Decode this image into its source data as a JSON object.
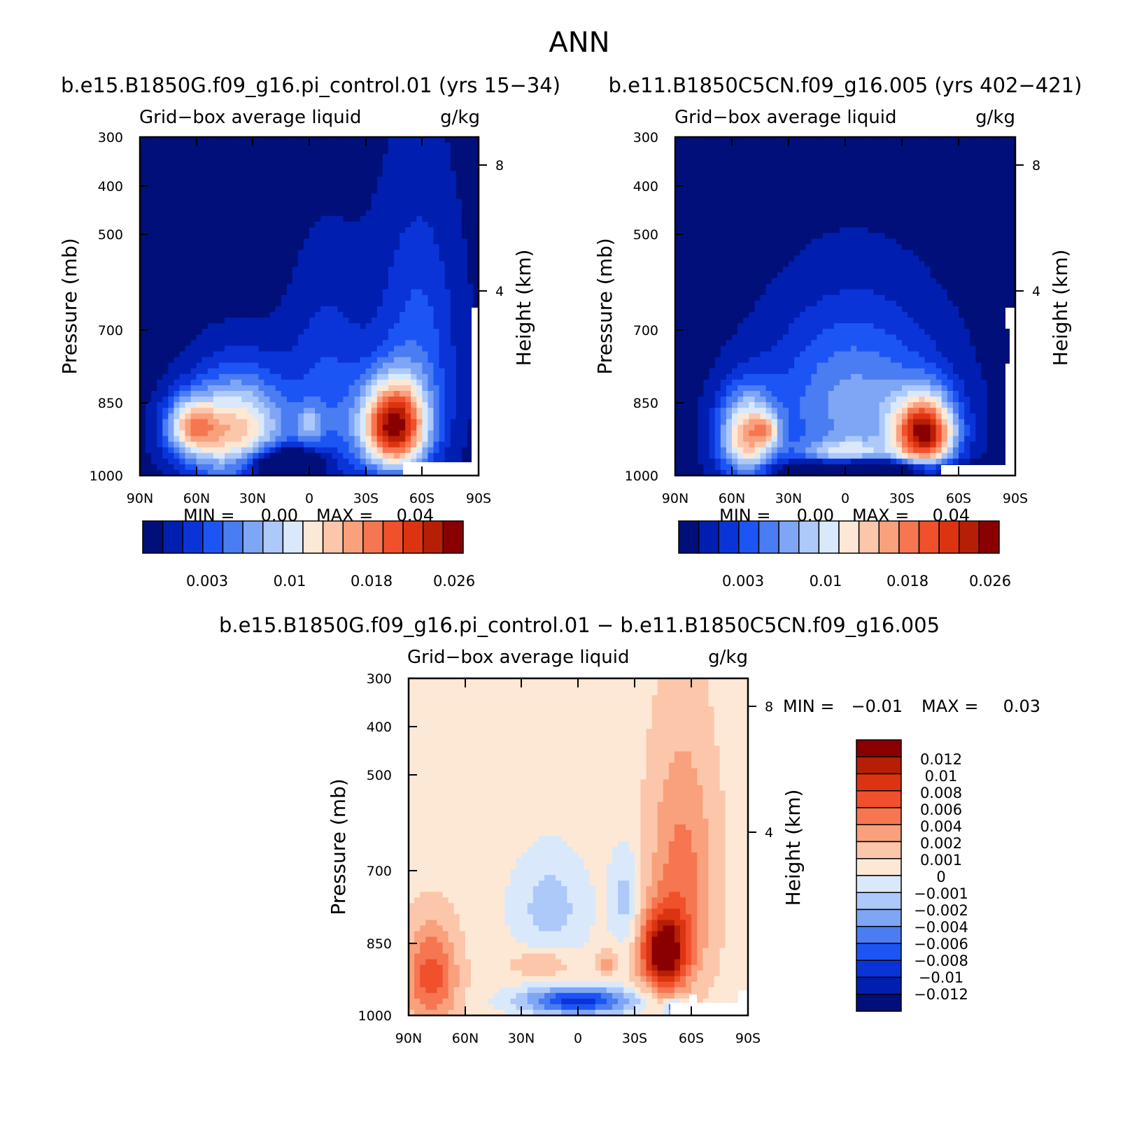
{
  "figure": {
    "title": "ANN"
  },
  "colors": {
    "cool": [
      "#000f7a",
      "#001fb0",
      "#0b34d8",
      "#1d55f5",
      "#4a7cf2",
      "#7ea6f5",
      "#adc9fa",
      "#d9e9fb"
    ],
    "warm": [
      "#fde8d6",
      "#fcc6aa",
      "#f9a07c",
      "#f57650",
      "#f0502b",
      "#dc3410",
      "#b61f06",
      "#8a0000"
    ],
    "white": "#ffffff"
  },
  "chart_data": [
    {
      "type": "heatmap",
      "title": "b.e15.B1850G.f09_g16.pi_control.01 (yrs 15−34)",
      "left_label": "Grid−box average liquid",
      "right_label": "g/kg",
      "xlabel": "",
      "ylabel": "Pressure (mb)",
      "ylabel_right": "Height (km)",
      "x_ticks": [
        "90N",
        "60N",
        "30N",
        "0",
        "30S",
        "60S",
        "90S"
      ],
      "y_ticks": [
        "300",
        "400",
        "500",
        "700",
        "850",
        "1000"
      ],
      "y_right_ticks": [
        "8",
        "4"
      ],
      "ylim": [
        1000,
        300
      ],
      "min_label": "MIN =",
      "min_value": "0.00",
      "max_label": "MAX =",
      "max_value": "0.04",
      "colorbar_ticks": [
        "0.003",
        "0.01",
        "0.018",
        "0.026"
      ],
      "field": {
        "background": 0,
        "blobs": [
          {
            "lat": 38,
            "p": 860,
            "slat": 26,
            "sp": 170,
            "a": 9
          },
          {
            "lat": 63,
            "p": 840,
            "slat": 14,
            "sp": 85,
            "a": 7
          },
          {
            "lat": -45,
            "p": 840,
            "slat": 17,
            "sp": 130,
            "a": 14
          },
          {
            "lat": -10,
            "p": 800,
            "slat": 22,
            "sp": 300,
            "a": 3
          },
          {
            "lat": 0,
            "p": 835,
            "slat": 6,
            "sp": 55,
            "a": 3
          },
          {
            "lat": -58,
            "p": 650,
            "slat": 22,
            "sp": 300,
            "a": 3
          },
          {
            "lat": 15,
            "p": 960,
            "slat": 22,
            "sp": 60,
            "a": -7
          }
        ]
      }
    },
    {
      "type": "heatmap",
      "title": "b.e11.B1850C5CN.f09_g16.005 (yrs 402−421)",
      "left_label": "Grid−box average liquid",
      "right_label": "g/kg",
      "xlabel": "",
      "ylabel": "Pressure (mb)",
      "ylabel_right": "Height (km)",
      "x_ticks": [
        "90N",
        "60N",
        "30N",
        "0",
        "30S",
        "60S",
        "90S"
      ],
      "y_ticks": [
        "300",
        "400",
        "500",
        "700",
        "850",
        "1000"
      ],
      "y_right_ticks": [
        "8",
        "4"
      ],
      "ylim": [
        1000,
        300
      ],
      "min_label": "MIN =",
      "min_value": "0.00",
      "max_label": "MAX =",
      "max_value": "0.04",
      "colorbar_ticks": [
        "0.003",
        "0.01",
        "0.018",
        "0.026"
      ],
      "field": {
        "background": 0,
        "blobs": [
          {
            "lat": 52,
            "p": 870,
            "slat": 15,
            "sp": 130,
            "a": 9
          },
          {
            "lat": 42,
            "p": 850,
            "slat": 6,
            "sp": 40,
            "a": 4
          },
          {
            "lat": -42,
            "p": 860,
            "slat": 16,
            "sp": 110,
            "a": 13
          },
          {
            "lat": -5,
            "p": 780,
            "slat": 45,
            "sp": 240,
            "a": 5
          },
          {
            "lat": 0,
            "p": 920,
            "slat": 22,
            "sp": 40,
            "a": 4
          },
          {
            "lat": -10,
            "p": 975,
            "slat": 40,
            "sp": 30,
            "a": -7
          }
        ]
      }
    },
    {
      "type": "heatmap",
      "title": "b.e15.B1850G.f09_g16.pi_control.01 − b.e11.B1850C5CN.f09_g16.005",
      "left_label": "Grid−box average liquid",
      "right_label": "g/kg",
      "xlabel": "",
      "ylabel": "Pressure (mb)",
      "ylabel_right": "Height (km)",
      "x_ticks": [
        "90N",
        "60N",
        "30N",
        "0",
        "30S",
        "60S",
        "90S"
      ],
      "y_ticks": [
        "300",
        "400",
        "500",
        "700",
        "850",
        "1000"
      ],
      "y_right_ticks": [
        "8",
        "4"
      ],
      "ylim": [
        1000,
        300
      ],
      "min_label": "MIN =",
      "min_value": "−0.01",
      "max_label": "MAX =",
      "max_value": "0.03",
      "colorbar_ticks": [
        "0.012",
        "0.01",
        "0.008",
        "0.006",
        "0.004",
        "0.002",
        "0.001",
        "0",
        "−0.001",
        "−0.002",
        "−0.004",
        "−0.006",
        "−0.008",
        "−0.01",
        "−0.012"
      ],
      "field": {
        "background": 8,
        "blobs": [
          {
            "lat": -45,
            "p": 800,
            "slat": 12,
            "sp": 110,
            "a": 7
          },
          {
            "lat": -55,
            "p": 620,
            "slat": 18,
            "sp": 280,
            "a": 3
          },
          {
            "lat": 78,
            "p": 870,
            "slat": 14,
            "sp": 160,
            "a": 4
          },
          {
            "lat": 20,
            "p": 830,
            "slat": 15,
            "sp": 40,
            "a": 2
          },
          {
            "lat": -15,
            "p": 830,
            "slat": 5,
            "sp": 40,
            "a": 2
          },
          {
            "lat": 0,
            "p": 950,
            "slat": 30,
            "sp": 45,
            "a": -6
          },
          {
            "lat": -52,
            "p": 975,
            "slat": 5,
            "sp": 25,
            "a": -6
          },
          {
            "lat": 15,
            "p": 680,
            "slat": 20,
            "sp": 130,
            "a": -2
          },
          {
            "lat": -25,
            "p": 660,
            "slat": 8,
            "sp": 120,
            "a": -2
          }
        ]
      }
    }
  ]
}
